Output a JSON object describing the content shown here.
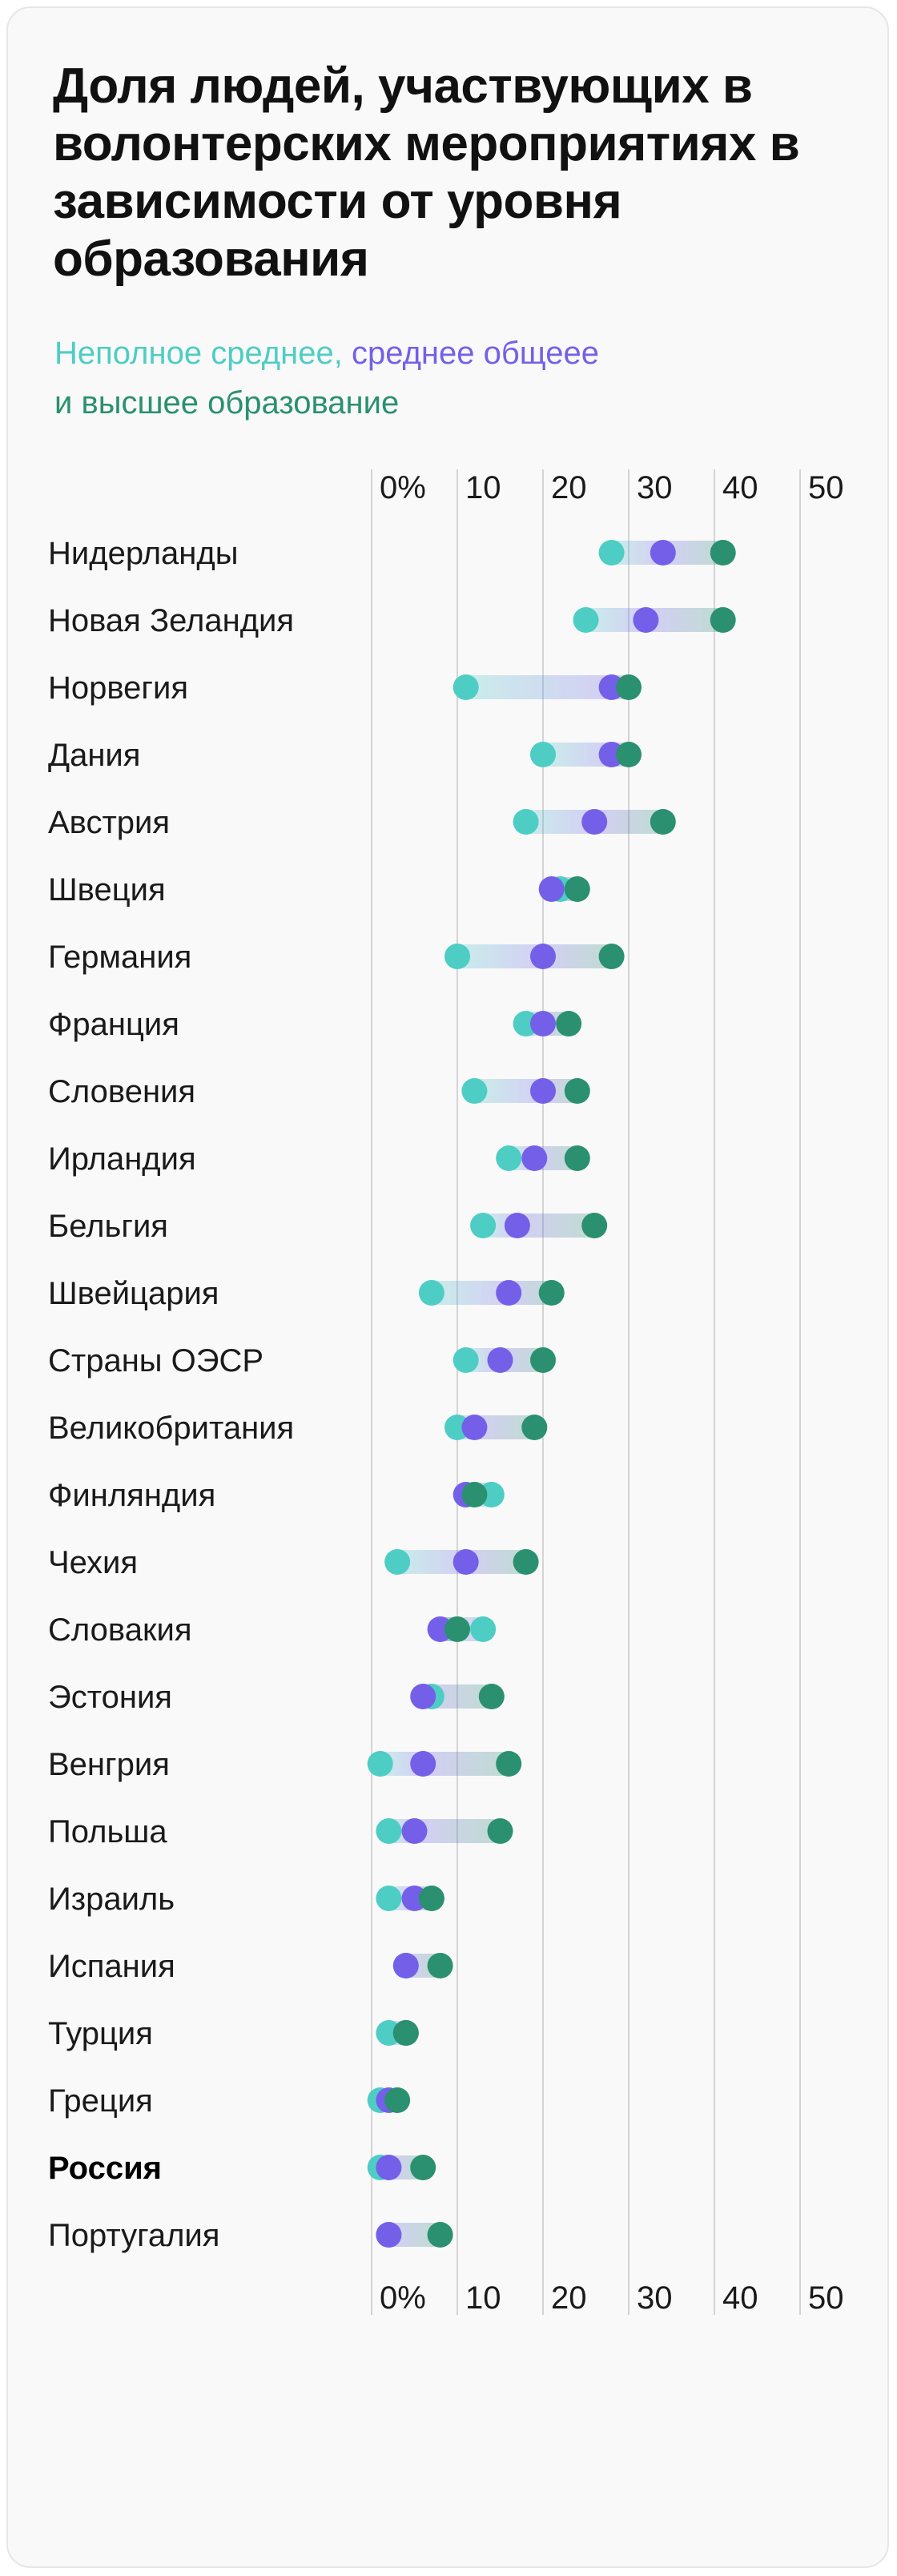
{
  "title": "Доля людей, участвующих в волонтерских мероприятиях в зависимости от уровня образования",
  "legend": {
    "parts": [
      {
        "text": "Неполное среднее,",
        "color": "#4ecdc4"
      },
      {
        "text": "среднее общееe",
        "color": "#7460e8"
      },
      {
        "text": "и высшее образование",
        "color": "#2a9070"
      }
    ]
  },
  "chart_data": {
    "type": "dumbbell",
    "title": "Доля людей, участвующих в волонтерских мероприятиях в зависимости от уровня образования",
    "xlim": [
      0,
      50
    ],
    "ticks": [
      0,
      10,
      20,
      30,
      40,
      50
    ],
    "tick_labels": [
      "0%",
      "10",
      "20",
      "30",
      "40",
      "50"
    ],
    "highlight": "Россия",
    "series": [
      {
        "name": "Неполное среднее",
        "color": "#4ecdc4"
      },
      {
        "name": "среднее общееe",
        "color": "#7460e8"
      },
      {
        "name": "высшее образование",
        "color": "#2a9070"
      }
    ],
    "rows": [
      {
        "country": "Нидерланды",
        "values": [
          28,
          34,
          41
        ]
      },
      {
        "country": "Новая Зеландия",
        "values": [
          25,
          32,
          41
        ]
      },
      {
        "country": "Норвегия",
        "values": [
          11,
          28,
          30
        ]
      },
      {
        "country": "Дания",
        "values": [
          20,
          28,
          30
        ]
      },
      {
        "country": "Австрия",
        "values": [
          18,
          26,
          34
        ]
      },
      {
        "country": "Швеция",
        "values": [
          22,
          21,
          24
        ]
      },
      {
        "country": "Германия",
        "values": [
          10,
          20,
          28
        ]
      },
      {
        "country": "Франция",
        "values": [
          18,
          20,
          23
        ]
      },
      {
        "country": "Словения",
        "values": [
          12,
          20,
          24
        ]
      },
      {
        "country": "Ирландия",
        "values": [
          16,
          19,
          24
        ]
      },
      {
        "country": "Бельгия",
        "values": [
          13,
          17,
          26
        ]
      },
      {
        "country": "Швейцария",
        "values": [
          7,
          16,
          21
        ]
      },
      {
        "country": "Страны ОЭСР",
        "values": [
          11,
          15,
          20
        ]
      },
      {
        "country": "Великобритания",
        "values": [
          10,
          12,
          19
        ]
      },
      {
        "country": "Финляндия",
        "values": [
          14,
          11,
          12
        ]
      },
      {
        "country": "Чехия",
        "values": [
          3,
          11,
          18
        ]
      },
      {
        "country": "Словакия",
        "values": [
          13,
          8,
          10
        ]
      },
      {
        "country": "Эстония",
        "values": [
          7,
          6,
          14
        ]
      },
      {
        "country": "Венгрия",
        "values": [
          1,
          6,
          16
        ]
      },
      {
        "country": "Польша",
        "values": [
          2,
          5,
          15
        ]
      },
      {
        "country": "Израиль",
        "values": [
          2,
          5,
          7
        ]
      },
      {
        "country": "Испания",
        "values": [
          4,
          4,
          8
        ]
      },
      {
        "country": "Турция",
        "values": [
          2,
          4,
          4
        ]
      },
      {
        "country": "Греция",
        "values": [
          1,
          2,
          3
        ]
      },
      {
        "country": "Россия",
        "values": [
          1,
          2,
          6
        ]
      },
      {
        "country": "Португалия",
        "values": [
          2,
          2,
          8
        ]
      }
    ]
  }
}
